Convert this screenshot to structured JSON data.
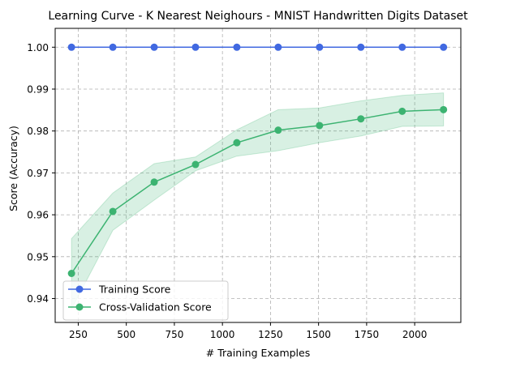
{
  "chart_data": {
    "type": "line",
    "title": "Learning Curve - K Nearest Neighours - MNIST Handwritten Digits Dataset",
    "xlabel": "# Training Examples",
    "ylabel": "Score (Accuracy)",
    "x": [
      215,
      430,
      645,
      860,
      1075,
      1290,
      1505,
      1720,
      1935,
      2150
    ],
    "xlim": [
      130,
      2240
    ],
    "ylim": [
      0.9343,
      1.0045
    ],
    "xticks": [
      250,
      500,
      750,
      1000,
      1250,
      1500,
      1750,
      2000
    ],
    "xtick_labels": [
      "250",
      "500",
      "750",
      "1000",
      "1250",
      "1500",
      "1750",
      "2000"
    ],
    "yticks": [
      0.94,
      0.95,
      0.96,
      0.97,
      0.98,
      0.99,
      1.0
    ],
    "ytick_labels": [
      "0.94",
      "0.95",
      "0.96",
      "0.97",
      "0.98",
      "0.99",
      "1.00"
    ],
    "grid": true,
    "grid_style": "dashed",
    "legend_position": "lower-left",
    "series": [
      {
        "name": "Training Score",
        "color": "#4169E1",
        "marker": "circle",
        "values": [
          1.0,
          1.0,
          1.0,
          1.0,
          1.0,
          1.0,
          1.0,
          1.0,
          1.0,
          1.0
        ]
      },
      {
        "name": "Cross-Validation Score",
        "color": "#3CB371",
        "marker": "circle",
        "values": [
          0.946,
          0.9608,
          0.9678,
          0.972,
          0.9772,
          0.9802,
          0.9813,
          0.9829,
          0.9847,
          0.9851
        ],
        "band_lower": [
          0.9375,
          0.9563,
          0.9635,
          0.9705,
          0.974,
          0.9753,
          0.9772,
          0.9788,
          0.9811,
          0.9812
        ],
        "band_upper": [
          0.9543,
          0.9652,
          0.9722,
          0.9738,
          0.9803,
          0.9851,
          0.9855,
          0.9872,
          0.9885,
          0.9891
        ],
        "band_color": "#3CB371"
      }
    ]
  }
}
